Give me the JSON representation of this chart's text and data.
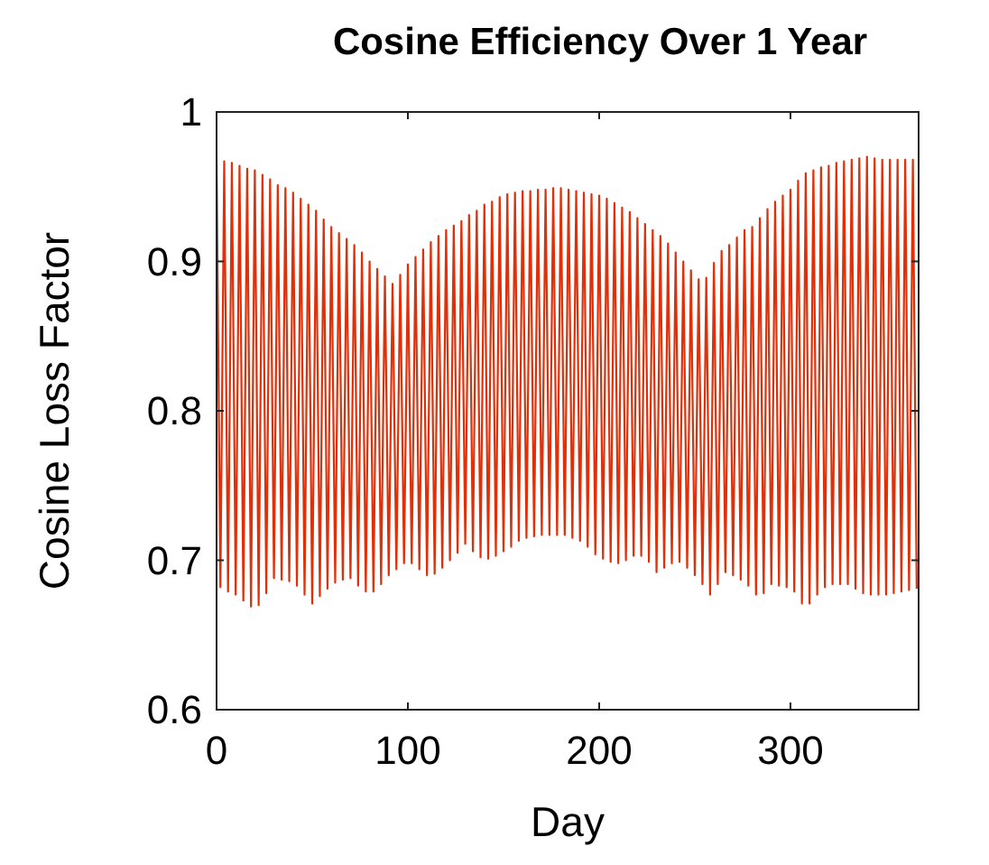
{
  "chart_data": {
    "type": "line",
    "title": "Cosine Efficiency Over 1 Year",
    "xlabel": "Day",
    "ylabel": "Cosine Loss Factor",
    "xlim": [
      0,
      367
    ],
    "ylim": [
      0.6,
      1
    ],
    "xticks": [
      0,
      100,
      200,
      300
    ],
    "yticks": [
      0.6,
      0.7,
      0.8,
      0.9,
      1
    ],
    "grid": false,
    "marker": "none",
    "line_style": "solid",
    "series": [
      {
        "color": "#e0300a",
        "x": [
          0,
          2,
          4,
          6,
          8,
          10,
          12,
          14,
          16,
          18,
          20,
          22,
          24,
          26,
          28,
          30,
          32,
          34,
          36,
          38,
          40,
          42,
          44,
          46,
          48,
          50,
          52,
          54,
          56,
          58,
          60,
          62,
          64,
          66,
          68,
          70,
          72,
          74,
          76,
          78,
          80,
          82,
          84,
          86,
          88,
          90,
          92,
          94,
          96,
          98,
          100,
          102,
          104,
          106,
          108,
          110,
          112,
          114,
          116,
          118,
          120,
          122,
          124,
          126,
          128,
          130,
          132,
          134,
          136,
          138,
          140,
          142,
          144,
          146,
          148,
          150,
          152,
          154,
          156,
          158,
          160,
          162,
          164,
          166,
          168,
          170,
          172,
          174,
          176,
          178,
          180,
          182,
          184,
          186,
          188,
          190,
          192,
          194,
          196,
          198,
          200,
          202,
          204,
          206,
          208,
          210,
          212,
          214,
          216,
          218,
          220,
          222,
          224,
          226,
          228,
          230,
          232,
          234,
          236,
          238,
          240,
          242,
          244,
          246,
          248,
          250,
          252,
          254,
          256,
          258,
          260,
          262,
          264,
          266,
          268,
          270,
          272,
          274,
          276,
          278,
          280,
          282,
          284,
          286,
          288,
          290,
          292,
          294,
          296,
          298,
          300,
          302,
          304,
          306,
          308,
          310,
          312,
          314,
          316,
          318,
          320,
          322,
          324,
          326,
          328,
          330,
          332,
          334,
          336,
          338,
          340,
          342,
          344,
          346,
          348,
          350,
          352,
          354,
          356,
          358,
          360,
          362,
          364,
          366
        ],
        "values": [
          0.969,
          0.682,
          0.967,
          0.679,
          0.966,
          0.677,
          0.964,
          0.673,
          0.962,
          0.669,
          0.961,
          0.67,
          0.958,
          0.678,
          0.955,
          0.688,
          0.951,
          0.687,
          0.949,
          0.686,
          0.946,
          0.683,
          0.942,
          0.677,
          0.938,
          0.671,
          0.934,
          0.676,
          0.928,
          0.681,
          0.923,
          0.685,
          0.919,
          0.687,
          0.915,
          0.688,
          0.911,
          0.683,
          0.906,
          0.679,
          0.9,
          0.679,
          0.895,
          0.684,
          0.89,
          0.69,
          0.885,
          0.694,
          0.891,
          0.698,
          0.898,
          0.698,
          0.903,
          0.694,
          0.908,
          0.69,
          0.913,
          0.691,
          0.917,
          0.695,
          0.921,
          0.7,
          0.924,
          0.705,
          0.927,
          0.711,
          0.931,
          0.706,
          0.934,
          0.702,
          0.938,
          0.701,
          0.94,
          0.703,
          0.943,
          0.706,
          0.945,
          0.709,
          0.946,
          0.713,
          0.947,
          0.715,
          0.947,
          0.716,
          0.948,
          0.717,
          0.948,
          0.717,
          0.949,
          0.717,
          0.949,
          0.717,
          0.948,
          0.715,
          0.947,
          0.713,
          0.946,
          0.709,
          0.945,
          0.704,
          0.944,
          0.701,
          0.942,
          0.699,
          0.939,
          0.698,
          0.936,
          0.7,
          0.933,
          0.703,
          0.929,
          0.703,
          0.925,
          0.699,
          0.921,
          0.692,
          0.917,
          0.695,
          0.912,
          0.698,
          0.906,
          0.699,
          0.9,
          0.695,
          0.894,
          0.69,
          0.888,
          0.684,
          0.889,
          0.677,
          0.899,
          0.684,
          0.907,
          0.692,
          0.911,
          0.69,
          0.916,
          0.687,
          0.921,
          0.683,
          0.923,
          0.677,
          0.929,
          0.678,
          0.935,
          0.684,
          0.94,
          0.683,
          0.944,
          0.682,
          0.948,
          0.679,
          0.954,
          0.671,
          0.959,
          0.671,
          0.961,
          0.677,
          0.963,
          0.682,
          0.964,
          0.684,
          0.966,
          0.684,
          0.967,
          0.684,
          0.968,
          0.681,
          0.969,
          0.678,
          0.97,
          0.677,
          0.969,
          0.677,
          0.968,
          0.677,
          0.968,
          0.678,
          0.968,
          0.679,
          0.968,
          0.68,
          0.968,
          0.681
        ]
      }
    ]
  }
}
